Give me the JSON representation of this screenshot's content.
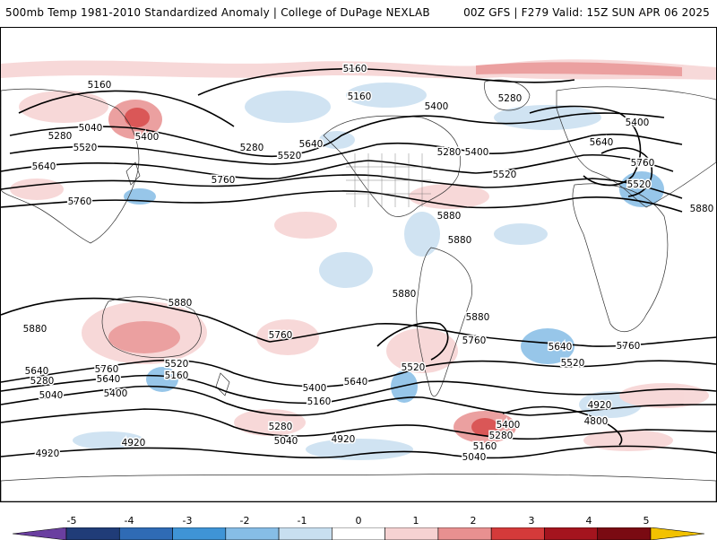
{
  "header": {
    "left_title": "500mb Temp 1981-2010 Standardized Anomaly | College of DuPage NEXLAB",
    "right_title": "00Z GFS | F279 Valid: 15Z SUN APR 06 2025"
  },
  "colorbar": {
    "ticks": [
      "-5",
      "-4",
      "-3",
      "-2",
      "-1",
      "0",
      "1",
      "2",
      "3",
      "4",
      "5"
    ],
    "colors": [
      "#6a3fa0",
      "#203c78",
      "#2f6bb5",
      "#3f94d6",
      "#86bde6",
      "#c8dff0",
      "#ffffff",
      "#f6d2d2",
      "#e89090",
      "#d43a3a",
      "#a4141e",
      "#7a0a12",
      "#f2c200"
    ]
  },
  "contour_labels": [
    {
      "text": "5160"
    },
    {
      "text": "5040"
    },
    {
      "text": "5280"
    },
    {
      "text": "5520"
    },
    {
      "text": "5400"
    },
    {
      "text": "5640"
    },
    {
      "text": "5760"
    },
    {
      "text": "5160"
    },
    {
      "text": "5280"
    },
    {
      "text": "5400"
    },
    {
      "text": "5160"
    },
    {
      "text": "5280"
    },
    {
      "text": "5280"
    },
    {
      "text": "5520"
    },
    {
      "text": "5640"
    },
    {
      "text": "5760"
    },
    {
      "text": "5400"
    },
    {
      "text": "5520"
    },
    {
      "text": "5400"
    },
    {
      "text": "5640"
    },
    {
      "text": "5520"
    },
    {
      "text": "5760"
    },
    {
      "text": "5880"
    },
    {
      "text": "5880"
    },
    {
      "text": "5880"
    },
    {
      "text": "5880"
    },
    {
      "text": "5880"
    },
    {
      "text": "5880"
    },
    {
      "text": "5760"
    },
    {
      "text": "5760"
    },
    {
      "text": "5640"
    },
    {
      "text": "5520"
    },
    {
      "text": "5880"
    },
    {
      "text": "5760"
    },
    {
      "text": "5640"
    },
    {
      "text": "5520"
    },
    {
      "text": "5160"
    },
    {
      "text": "5280"
    },
    {
      "text": "5400"
    },
    {
      "text": "5040"
    },
    {
      "text": "5400"
    },
    {
      "text": "5160"
    },
    {
      "text": "5640"
    },
    {
      "text": "5520"
    },
    {
      "text": "4920"
    },
    {
      "text": "5280"
    },
    {
      "text": "5040"
    },
    {
      "text": "4920"
    },
    {
      "text": "4920"
    },
    {
      "text": "5400"
    },
    {
      "text": "5280"
    },
    {
      "text": "5160"
    },
    {
      "text": "5040"
    },
    {
      "text": "4920"
    },
    {
      "text": "4800"
    },
    {
      "text": "5760"
    },
    {
      "text": "5640"
    }
  ]
}
